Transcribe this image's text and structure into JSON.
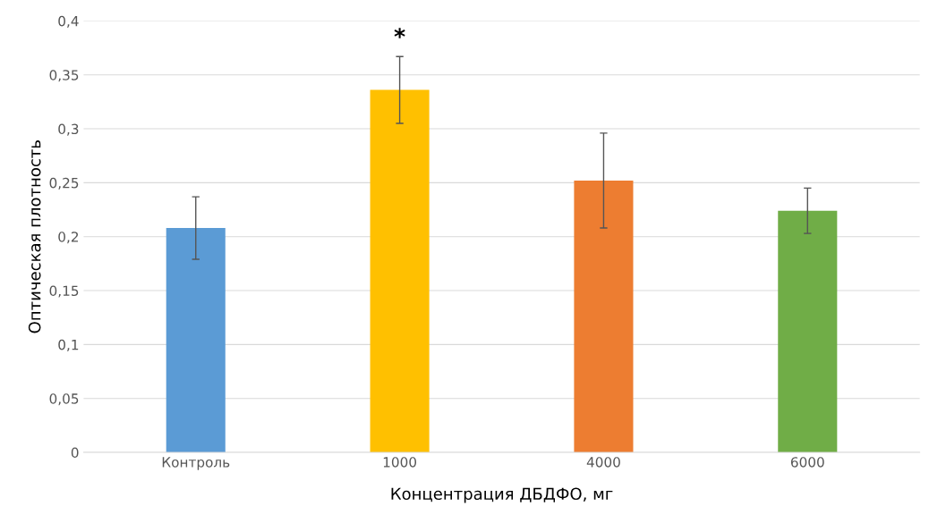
{
  "chart_data": {
    "type": "bar",
    "xlabel": "Концентрация ДБДФО, мг",
    "ylabel": "Оптическая плотность",
    "categories": [
      "Контроль",
      "1000",
      "4000",
      "6000"
    ],
    "values": [
      0.208,
      0.336,
      0.252,
      0.224
    ],
    "errors": [
      0.029,
      0.031,
      0.044,
      0.021
    ],
    "colors": [
      "#5b9bd5",
      "#ffc000",
      "#ed7d31",
      "#70ad47"
    ],
    "ylim": [
      0,
      0.4
    ],
    "yticks": [
      {
        "value": 0,
        "label": "0"
      },
      {
        "value": 0.05,
        "label": "0,05"
      },
      {
        "value": 0.1,
        "label": "0,1"
      },
      {
        "value": 0.15,
        "label": "0,15"
      },
      {
        "value": 0.2,
        "label": "0,2"
      },
      {
        "value": 0.25,
        "label": "0,25"
      },
      {
        "value": 0.3,
        "label": "0,3"
      },
      {
        "value": 0.35,
        "label": "0,35"
      },
      {
        "value": 0.4,
        "label": "0,4"
      }
    ],
    "grid": "y",
    "annotations": [
      {
        "text": "*",
        "x": "1000",
        "y": 0.367
      }
    ]
  }
}
